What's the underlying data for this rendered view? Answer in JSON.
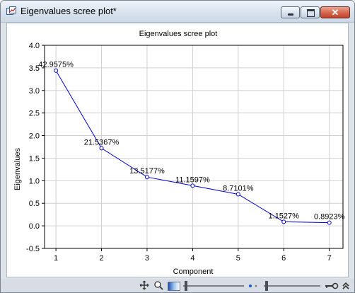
{
  "window": {
    "title": "Eigenvalues scree plot*",
    "close_glyph": "✕",
    "icons": [
      "app-icon",
      "minimize-icon",
      "maximize-icon",
      "close-icon"
    ]
  },
  "chart_data": {
    "type": "line",
    "title": "Eigenvalues scree plot",
    "xlabel": "Component",
    "ylabel": "Eigenvalues",
    "x": [
      1,
      2,
      3,
      4,
      5,
      6,
      7
    ],
    "xticks": [
      "1",
      "2",
      "3",
      "4",
      "5",
      "6",
      "7"
    ],
    "xlim": [
      0.75,
      7.3
    ],
    "ylim": [
      -0.5,
      4.0
    ],
    "yticks": [
      "-0.5",
      "0.0",
      "0.5",
      "1.0",
      "1.5",
      "2.0",
      "2.5",
      "3.0",
      "3.5",
      "4.0"
    ],
    "grid": true,
    "series": [
      {
        "values": [
          3.44,
          1.72,
          1.08,
          0.89,
          0.7,
          0.09,
          0.07
        ],
        "data_labels": [
          "42.9575%",
          "21.5367%",
          "13.5177%",
          "11.1597%",
          "8.7101%",
          "1.1527%",
          "0.8923%"
        ],
        "color": "#0000cc",
        "marker": "circle"
      }
    ]
  },
  "statusbar": {
    "icons": [
      "pan-icon",
      "zoom-icon",
      "color-swatch-icon",
      "zoom-slider",
      "dots-icon",
      "size-slider",
      "key-icon",
      "chevron-up-icon"
    ]
  }
}
